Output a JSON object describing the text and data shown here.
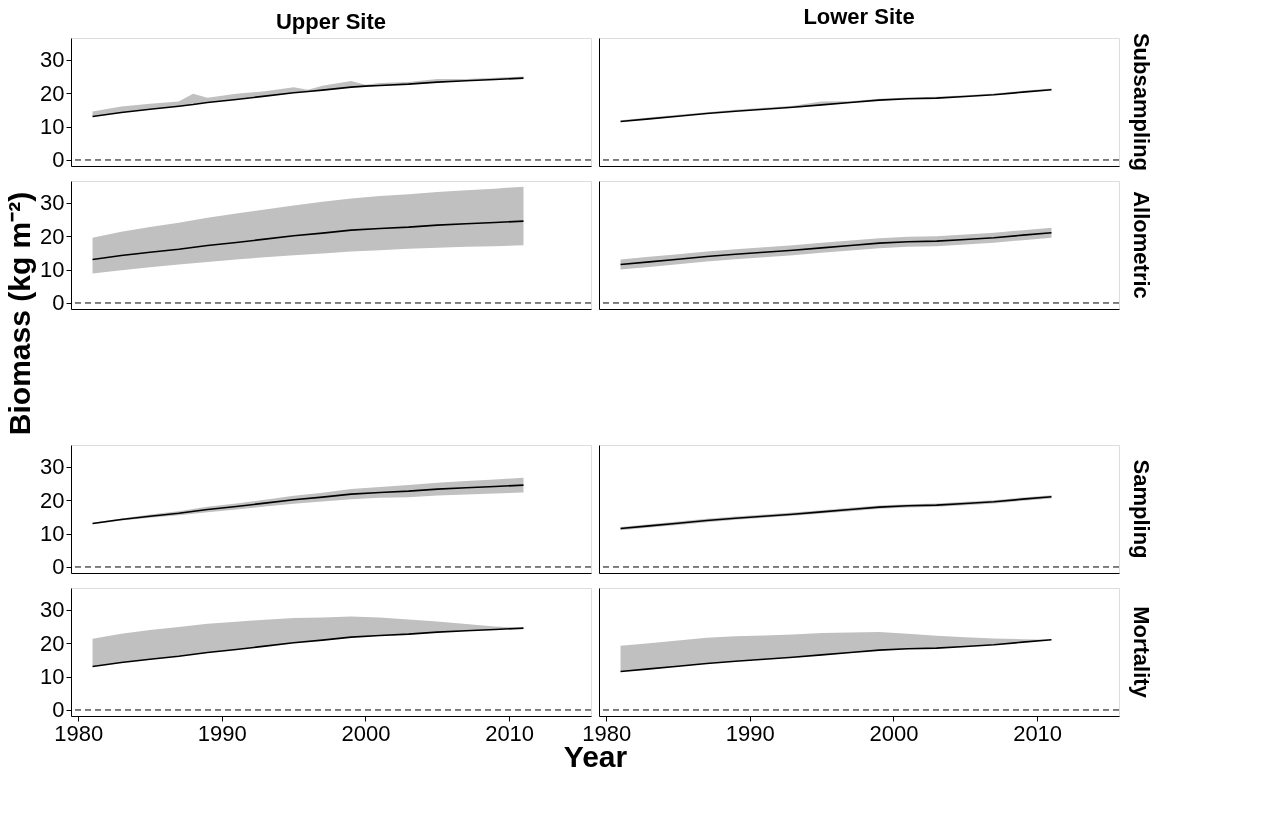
{
  "chart_data": [
    {
      "type": "line",
      "title": "Upper Site",
      "x": [
        1981,
        1983,
        1985,
        1987,
        1988,
        1989,
        1991,
        1993,
        1995,
        1996,
        1997,
        1999,
        2000,
        2001,
        2003,
        2005,
        2007,
        2009,
        2011
      ],
      "xlim": [
        1979.5,
        2015.7
      ],
      "xticks": [
        1980,
        1990,
        2000,
        2010
      ],
      "ylim": [
        -1.8,
        36.5
      ],
      "yticks": [
        0,
        10,
        20,
        30
      ],
      "grid": false,
      "tick_labels": "y",
      "series": [
        {
          "color": "#000000",
          "values": [
            13,
            14.2,
            15.2,
            16.1,
            16.6,
            17.2,
            18.1,
            19.1,
            20.1,
            20.5,
            20.9,
            21.8,
            22.1,
            22.3,
            22.7,
            23.3,
            23.7,
            24.1,
            24.5
          ],
          "lower": [
            13,
            14.2,
            15.2,
            16.1,
            16.6,
            17.2,
            18.1,
            19.1,
            20.1,
            20.5,
            20.9,
            21.8,
            22.1,
            22.3,
            22.7,
            23.3,
            23.7,
            24.1,
            24.5
          ],
          "upper": [
            14.5,
            16,
            16.8,
            17.5,
            19.8,
            18.6,
            19.8,
            20.6,
            21.8,
            21,
            22.2,
            23.6,
            22.5,
            23,
            23.3,
            24.2,
            24.2,
            24.6,
            25
          ]
        }
      ],
      "ref_lines": [
        {
          "axis": "y",
          "value": 0,
          "line_style": "dashed"
        }
      ]
    },
    {
      "type": "line",
      "title": "Lower Site",
      "y2label": "Subsampling",
      "x": [
        1981,
        1983,
        1985,
        1987,
        1989,
        1991,
        1993,
        1995,
        1997,
        1999,
        2001,
        2003,
        2005,
        2007,
        2009,
        2011
      ],
      "xlim": [
        1979.5,
        2015.7
      ],
      "xticks": [
        1980,
        1990,
        2000,
        2010
      ],
      "ylim": [
        -1.8,
        36.5
      ],
      "yticks": [
        0,
        10,
        20,
        30
      ],
      "grid": false,
      "tick_labels": false,
      "series": [
        {
          "color": "#000000",
          "values": [
            11.5,
            12.3,
            13.1,
            13.9,
            14.6,
            15.2,
            15.8,
            16.5,
            17.2,
            17.9,
            18.3,
            18.5,
            19.0,
            19.5,
            20.3,
            21.0
          ],
          "lower": [
            11.5,
            12.3,
            13.1,
            13.9,
            14.6,
            15.2,
            15.8,
            16.5,
            17.2,
            17.9,
            18.3,
            18.5,
            19.0,
            19.5,
            20.3,
            21.0
          ],
          "upper": [
            11.9,
            12.7,
            13.5,
            14.3,
            15.0,
            15.6,
            16.2,
            17.5,
            17.6,
            18.3,
            18.7,
            18.9,
            19.4,
            19.9,
            20.7,
            21.4
          ]
        }
      ],
      "ref_lines": [
        {
          "axis": "y",
          "value": 0,
          "line_style": "dashed"
        }
      ]
    },
    {
      "type": "line",
      "ylabel": "Biomass (kg m⁻²)",
      "x": [
        1981,
        1983,
        1985,
        1987,
        1989,
        1991,
        1993,
        1995,
        1997,
        1999,
        2001,
        2003,
        2005,
        2007,
        2009,
        2011
      ],
      "xlim": [
        1979.5,
        2015.7
      ],
      "xticks": [
        1980,
        1990,
        2000,
        2010
      ],
      "ylim": [
        -1.8,
        36.5
      ],
      "yticks": [
        0,
        10,
        20,
        30
      ],
      "grid": false,
      "tick_labels": "y",
      "series": [
        {
          "color": "#000000",
          "values": [
            13,
            14.2,
            15.2,
            16.1,
            17.2,
            18.1,
            19.1,
            20.1,
            20.9,
            21.8,
            22.3,
            22.7,
            23.3,
            23.7,
            24.1,
            24.5
          ],
          "lower": [
            8.8,
            9.8,
            10.7,
            11.5,
            12.3,
            13.0,
            13.7,
            14.3,
            14.8,
            15.4,
            15.8,
            16.2,
            16.5,
            16.8,
            17.0,
            17.3
          ],
          "upper": [
            19.5,
            21.3,
            22.7,
            24.0,
            25.5,
            26.8,
            28.0,
            29.2,
            30.3,
            31.3,
            32.0,
            32.5,
            33.2,
            33.7,
            34.2,
            34.8
          ]
        }
      ],
      "ref_lines": [
        {
          "axis": "y",
          "value": 0,
          "line_style": "dashed"
        }
      ]
    },
    {
      "type": "line",
      "y2label": "Allometric",
      "x": [
        1981,
        1983,
        1985,
        1987,
        1989,
        1991,
        1993,
        1995,
        1997,
        1999,
        2001,
        2003,
        2005,
        2007,
        2009,
        2011
      ],
      "xlim": [
        1979.5,
        2015.7
      ],
      "xticks": [
        1980,
        1990,
        2000,
        2010
      ],
      "ylim": [
        -1.8,
        36.5
      ],
      "yticks": [
        0,
        10,
        20,
        30
      ],
      "grid": false,
      "tick_labels": false,
      "series": [
        {
          "color": "#000000",
          "values": [
            11.5,
            12.3,
            13.1,
            13.9,
            14.6,
            15.2,
            15.8,
            16.5,
            17.2,
            17.9,
            18.3,
            18.5,
            19.0,
            19.5,
            20.3,
            21.0
          ],
          "lower": [
            10.0,
            10.8,
            11.6,
            12.4,
            13.1,
            13.7,
            14.3,
            15.0,
            15.7,
            16.4,
            16.8,
            17.0,
            17.5,
            18.0,
            18.8,
            19.5
          ],
          "upper": [
            13.0,
            13.8,
            14.6,
            15.4,
            16.1,
            16.7,
            17.3,
            18.0,
            18.7,
            19.4,
            19.8,
            20.0,
            20.5,
            21.0,
            21.8,
            22.5
          ]
        }
      ],
      "ref_lines": [
        {
          "axis": "y",
          "value": 0,
          "line_style": "dashed"
        }
      ]
    },
    {
      "type": "line",
      "x": [
        1981,
        1983,
        1985,
        1987,
        1989,
        1991,
        1993,
        1995,
        1997,
        1999,
        2001,
        2003,
        2005,
        2007,
        2009,
        2011
      ],
      "xlim": [
        1979.5,
        2015.7
      ],
      "xticks": [
        1980,
        1990,
        2000,
        2010
      ],
      "ylim": [
        -1.8,
        36.5
      ],
      "yticks": [
        0,
        10,
        20,
        30
      ],
      "grid": false,
      "tick_labels": "y",
      "series": [
        {
          "color": "#000000",
          "values": [
            13,
            14.2,
            15.2,
            16.1,
            17.2,
            18.1,
            19.1,
            20.1,
            20.9,
            21.8,
            22.3,
            22.7,
            23.3,
            23.7,
            24.1,
            24.5
          ],
          "lower": [
            12.8,
            13.9,
            14.7,
            15.5,
            16.4,
            17.2,
            18.1,
            18.9,
            19.6,
            20.3,
            20.7,
            20.9,
            21.4,
            21.7,
            22.0,
            22.3
          ],
          "upper": [
            13.2,
            14.5,
            15.7,
            16.7,
            18.0,
            19.0,
            20.1,
            21.3,
            22.2,
            23.3,
            23.9,
            24.5,
            25.2,
            25.7,
            26.2,
            26.7
          ]
        }
      ],
      "ref_lines": [
        {
          "axis": "y",
          "value": 0,
          "line_style": "dashed"
        }
      ]
    },
    {
      "type": "line",
      "y2label": "Sampling",
      "x": [
        1981,
        1983,
        1985,
        1987,
        1989,
        1991,
        1993,
        1995,
        1997,
        1999,
        2001,
        2003,
        2005,
        2007,
        2009,
        2011
      ],
      "xlim": [
        1979.5,
        2015.7
      ],
      "xticks": [
        1980,
        1990,
        2000,
        2010
      ],
      "ylim": [
        -1.8,
        36.5
      ],
      "yticks": [
        0,
        10,
        20,
        30
      ],
      "grid": false,
      "tick_labels": false,
      "series": [
        {
          "color": "#000000",
          "values": [
            11.5,
            12.3,
            13.1,
            13.9,
            14.6,
            15.2,
            15.8,
            16.5,
            17.2,
            17.9,
            18.3,
            18.5,
            19.0,
            19.5,
            20.3,
            21.0
          ],
          "lower": [
            11.0,
            11.8,
            12.6,
            13.4,
            14.1,
            14.7,
            15.3,
            16.0,
            16.7,
            17.4,
            17.8,
            18.0,
            18.5,
            19.0,
            19.8,
            20.5
          ],
          "upper": [
            12.0,
            12.8,
            13.6,
            14.4,
            15.1,
            15.7,
            16.3,
            17.0,
            17.7,
            18.4,
            18.8,
            19.0,
            19.5,
            20.0,
            20.8,
            21.5
          ]
        }
      ],
      "ref_lines": [
        {
          "axis": "y",
          "value": 0,
          "line_style": "dashed"
        }
      ]
    },
    {
      "type": "line",
      "xlabel": "Year",
      "x": [
        1981,
        1983,
        1985,
        1987,
        1989,
        1991,
        1993,
        1995,
        1997,
        1999,
        2001,
        2003,
        2005,
        2007,
        2009,
        2011
      ],
      "xlim": [
        1979.5,
        2015.7
      ],
      "xticks": [
        1980,
        1990,
        2000,
        2010
      ],
      "ylim": [
        -1.8,
        36.5
      ],
      "yticks": [
        0,
        10,
        20,
        30
      ],
      "grid": false,
      "series": [
        {
          "color": "#000000",
          "values": [
            13,
            14.2,
            15.2,
            16.1,
            17.2,
            18.1,
            19.1,
            20.1,
            20.9,
            21.8,
            22.3,
            22.7,
            23.3,
            23.7,
            24.1,
            24.5
          ],
          "lower": [
            13,
            14.2,
            15.2,
            16.1,
            17.2,
            18.1,
            19.1,
            20.1,
            20.9,
            21.8,
            22.3,
            22.7,
            23.3,
            23.7,
            24.1,
            24.5
          ],
          "upper": [
            21.3,
            22.8,
            23.9,
            24.8,
            25.8,
            26.4,
            27.0,
            27.5,
            27.7,
            28.0,
            27.7,
            27.1,
            26.5,
            25.7,
            25.0,
            24.5
          ]
        }
      ],
      "ref_lines": [
        {
          "axis": "y",
          "value": 0,
          "line_style": "dashed"
        }
      ]
    },
    {
      "type": "line",
      "y2label": "Mortality",
      "x": [
        1981,
        1983,
        1985,
        1987,
        1989,
        1991,
        1993,
        1995,
        1997,
        1999,
        2001,
        2003,
        2005,
        2007,
        2009,
        2011
      ],
      "xlim": [
        1979.5,
        2015.7
      ],
      "xticks": [
        1980,
        1990,
        2000,
        2010
      ],
      "ylim": [
        -1.8,
        36.5
      ],
      "yticks": [
        0,
        10,
        20,
        30
      ],
      "grid": false,
      "tick_labels": "x",
      "series": [
        {
          "color": "#000000",
          "values": [
            11.5,
            12.3,
            13.1,
            13.9,
            14.6,
            15.2,
            15.8,
            16.5,
            17.2,
            17.9,
            18.3,
            18.5,
            19.0,
            19.5,
            20.3,
            21.0
          ],
          "lower": [
            11.5,
            12.3,
            13.1,
            13.9,
            14.6,
            15.2,
            15.8,
            16.5,
            17.2,
            17.9,
            18.3,
            18.5,
            19.0,
            19.5,
            20.3,
            21.0
          ],
          "upper": [
            19.2,
            20.0,
            20.8,
            21.6,
            22.1,
            22.3,
            22.6,
            23.0,
            23.2,
            23.3,
            22.8,
            22.2,
            21.8,
            21.4,
            21.2,
            21.0
          ]
        }
      ],
      "ref_lines": [
        {
          "axis": "y",
          "value": 0,
          "line_style": "dashed"
        }
      ]
    }
  ]
}
